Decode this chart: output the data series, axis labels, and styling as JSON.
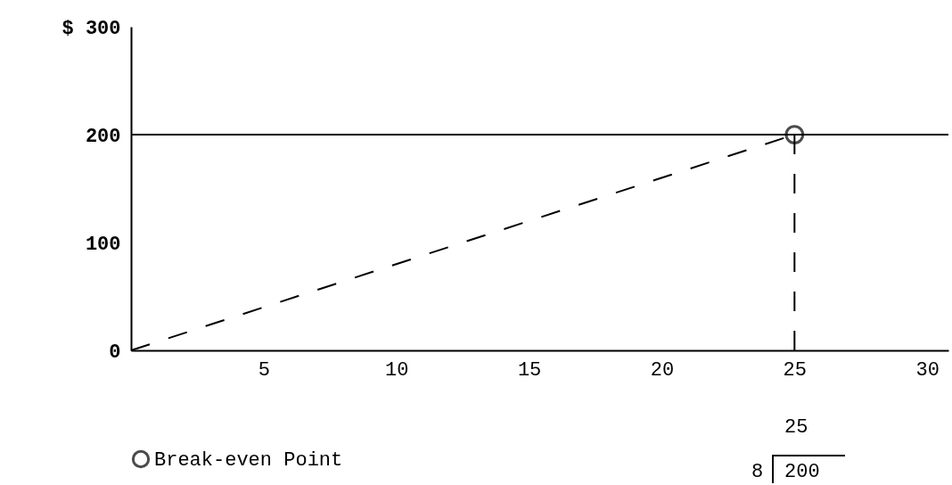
{
  "chart_data": {
    "type": "line",
    "xlim": [
      0,
      30.8
    ],
    "xticks": [
      5,
      10,
      15,
      20,
      25,
      30
    ],
    "ylim": [
      0,
      300
    ],
    "yticks": [
      0,
      100,
      200,
      {
        "value": 300,
        "label": "$ 300"
      }
    ],
    "grid": false,
    "legend": "bottom",
    "series": [
      {
        "color": "#000000",
        "x": [
          0,
          30.8
        ],
        "values": [
          200,
          200
        ],
        "line_style": "solid"
      },
      {
        "color": "#000000",
        "x": [
          0,
          25
        ],
        "values": [
          0,
          200
        ],
        "line_style": "dashed"
      },
      {
        "color": "#000000",
        "x": [
          25,
          25
        ],
        "values": [
          0,
          200
        ],
        "line_style": "dashed"
      },
      {
        "name": "Break-even Point",
        "type": "scatter",
        "marker": "circle",
        "color": "#000000",
        "x": [
          25
        ],
        "values": [
          200
        ]
      }
    ],
    "annotations": [
      "25",
      "8",
      "200"
    ]
  }
}
